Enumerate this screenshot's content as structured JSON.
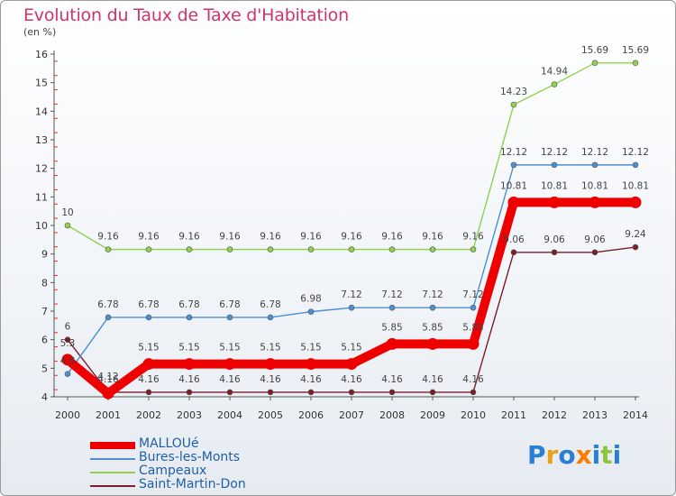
{
  "title": "Evolution du Taux de Taxe d'Habitation",
  "subtitle": "(en %)",
  "logo_text": "Proxiti",
  "chart_data": {
    "type": "line",
    "x": [
      "2000",
      "2001",
      "2002",
      "2003",
      "2004",
      "2005",
      "2006",
      "2007",
      "2008",
      "2009",
      "2010",
      "2011",
      "2012",
      "2013",
      "2014"
    ],
    "ylim": [
      4,
      16
    ],
    "yticks": [
      4,
      5,
      6,
      7,
      8,
      9,
      10,
      11,
      12,
      13,
      14,
      15,
      16
    ],
    "grid": false,
    "legend": "bottom-left",
    "series": [
      {
        "name": "MALLOUé",
        "color": "#ee0000",
        "values": [
          5.3,
          4.12,
          5.15,
          5.15,
          5.15,
          5.15,
          5.15,
          5.15,
          5.85,
          5.85,
          5.85,
          10.81,
          10.81,
          10.81,
          10.81
        ]
      },
      {
        "name": "Bures-les-Monts",
        "color": "#4d8fd1",
        "values": [
          4.8,
          6.78,
          6.78,
          6.78,
          6.78,
          6.78,
          6.98,
          7.12,
          7.12,
          7.12,
          7.12,
          12.12,
          12.12,
          12.12,
          12.12
        ]
      },
      {
        "name": "Campeaux",
        "color": "#8fd14d",
        "values": [
          10,
          9.16,
          9.16,
          9.16,
          9.16,
          9.16,
          9.16,
          9.16,
          9.16,
          9.16,
          9.16,
          14.23,
          14.94,
          15.69,
          15.69
        ]
      },
      {
        "name": "Saint-Martin-Don",
        "color": "#7a1e2c",
        "values": [
          6,
          4.16,
          4.16,
          4.16,
          4.16,
          4.16,
          4.16,
          4.16,
          4.16,
          4.16,
          4.16,
          9.06,
          9.06,
          9.06,
          9.24
        ]
      }
    ],
    "data_labels": [
      [
        "5.3",
        "4.12",
        "5.15",
        "5.15",
        "5.15",
        "5.15",
        "5.15",
        "5.15",
        "5.85",
        "5.85",
        "5.85",
        "10.81",
        "10.81",
        "10.81",
        "10.81"
      ],
      [
        "4.8",
        "6.78",
        "6.78",
        "6.78",
        "6.78",
        "6.78",
        "6.98",
        "7.12",
        "7.12",
        "7.12",
        "7.12",
        "12.12",
        "12.12",
        "12.12",
        "12.12"
      ],
      [
        "10",
        "9.16",
        "9.16",
        "9.16",
        "9.16",
        "9.16",
        "9.16",
        "9.16",
        "9.16",
        "9.16",
        "9.16",
        "14.23",
        "14.94",
        "15.69",
        "15.69"
      ],
      [
        "6",
        "4.16",
        "4.16",
        "4.16",
        "4.16",
        "4.16",
        "4.16",
        "4.16",
        "4.16",
        "4.16",
        "4.16",
        "9.06",
        "9.06",
        "9.06",
        "9.24"
      ]
    ]
  }
}
